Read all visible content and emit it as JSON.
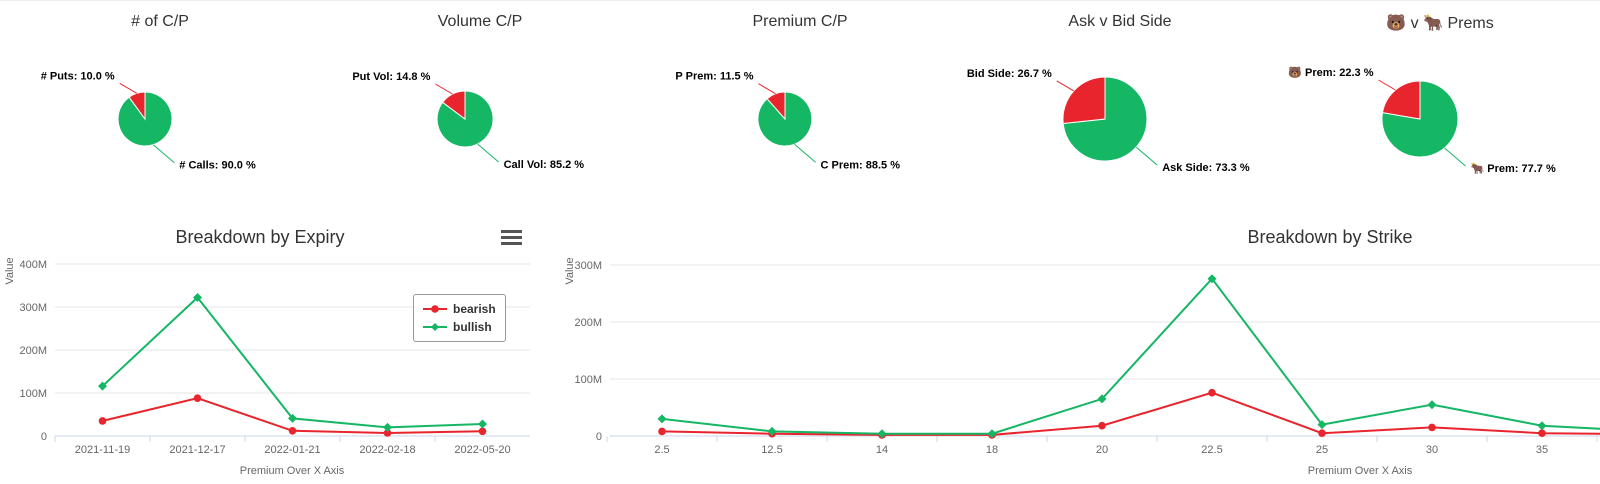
{
  "colors": {
    "bearish_red": "#e8252d",
    "bullish_green": "#15b664"
  },
  "chart_data": [
    {
      "type": "pie",
      "title": "# of C/P",
      "slices": [
        {
          "name": "# Calls",
          "pct": 90.0,
          "display": "# Calls: 90.0 %",
          "color": "#15b664"
        },
        {
          "name": "# Puts",
          "pct": 10.0,
          "display": "# Puts: 10.0 %",
          "color": "#e8252d"
        }
      ]
    },
    {
      "type": "pie",
      "title": "Volume C/P",
      "slices": [
        {
          "name": "Call Vol",
          "pct": 85.2,
          "display": "Call Vol: 85.2 %",
          "color": "#15b664"
        },
        {
          "name": "Put Vol",
          "pct": 14.8,
          "display": "Put Vol: 14.8 %",
          "color": "#e8252d"
        }
      ]
    },
    {
      "type": "pie",
      "title": "Premium C/P",
      "slices": [
        {
          "name": "C Prem",
          "pct": 88.5,
          "display": "C Prem: 88.5 %",
          "color": "#15b664"
        },
        {
          "name": "P Prem",
          "pct": 11.5,
          "display": "P Prem: 11.5 %",
          "color": "#e8252d"
        }
      ]
    },
    {
      "type": "pie",
      "title": "Ask v Bid Side",
      "slices": [
        {
          "name": "Ask Side",
          "pct": 73.3,
          "display": "Ask Side: 73.3 %",
          "color": "#15b664"
        },
        {
          "name": "Bid Side",
          "pct": 26.7,
          "display": "Bid Side: 26.7 %",
          "color": "#e8252d"
        }
      ]
    },
    {
      "type": "pie",
      "title": "🐻 v 🐂 Prems",
      "slices": [
        {
          "name": "🐂 Prem",
          "pct": 77.7,
          "display": "🐂 Prem: 77.7 %",
          "color": "#15b664"
        },
        {
          "name": "🐻 Prem",
          "pct": 22.3,
          "display": "🐻 Prem: 22.3 %",
          "color": "#e8252d"
        }
      ]
    },
    {
      "type": "line",
      "title": "Breakdown by Expiry",
      "xlabel": "Premium Over X Axis",
      "ylabel": "Value",
      "unit": "millions",
      "grid": true,
      "legend_position": "middle-right",
      "categories": [
        "2021-11-19",
        "2021-12-17",
        "2022-01-21",
        "2022-02-18",
        "2022-05-20"
      ],
      "ylim": [
        0,
        400
      ],
      "yticks": [
        {
          "value": 0,
          "label": "0"
        },
        {
          "value": 100,
          "label": "100M"
        },
        {
          "value": 200,
          "label": "200M"
        },
        {
          "value": 300,
          "label": "300M"
        },
        {
          "value": 400,
          "label": "400M"
        }
      ],
      "series": [
        {
          "name": "bearish",
          "color": "#e8252d",
          "marker": "circle",
          "values_millions": [
            35,
            88,
            12,
            7,
            11
          ]
        },
        {
          "name": "bullish",
          "color": "#15b664",
          "marker": "diamond",
          "values_millions": [
            116,
            322,
            41,
            20,
            28
          ]
        }
      ]
    },
    {
      "type": "line",
      "title": "Breakdown by Strike",
      "xlabel": "Premium Over X Axis",
      "ylabel": "Value",
      "unit": "millions",
      "grid": true,
      "legend_position": "none",
      "categories": [
        "2.5",
        "12.5",
        "14",
        "18",
        "20",
        "22.5",
        "25",
        "30",
        "35",
        ""
      ],
      "ylim": [
        0,
        300
      ],
      "yticks": [
        {
          "value": 0,
          "label": "0"
        },
        {
          "value": 100,
          "label": "100M"
        },
        {
          "value": 200,
          "label": "200M"
        },
        {
          "value": 300,
          "label": "300M"
        }
      ],
      "series": [
        {
          "name": "bearish",
          "color": "#e8252d",
          "marker": "circle",
          "values_millions": [
            8,
            4,
            2,
            2,
            18,
            76,
            5,
            15,
            5,
            3
          ]
        },
        {
          "name": "bullish",
          "color": "#15b664",
          "marker": "diamond",
          "values_millions": [
            30,
            8,
            4,
            4,
            65,
            276,
            20,
            55,
            18,
            8
          ]
        }
      ]
    }
  ]
}
